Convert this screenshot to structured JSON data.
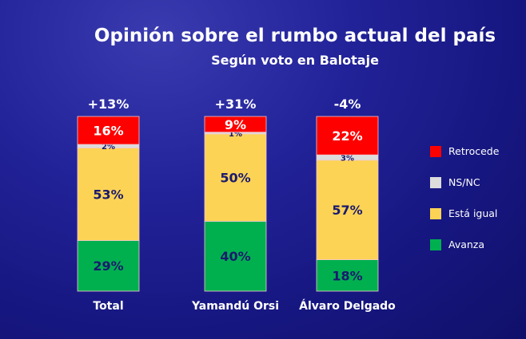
{
  "chart_data": {
    "type": "bar",
    "stacked": true,
    "title": "Opinión sobre el rumbo actual del país",
    "subtitle": "Según voto en Balotaje",
    "categories": [
      "Total",
      "Yamandú Orsi",
      "Álvaro Delgado"
    ],
    "net_labels": [
      "+13%",
      "+31%",
      "-4%"
    ],
    "series": [
      {
        "name": "Avanza",
        "color": "#00b04f",
        "values": [
          29,
          40,
          18
        ]
      },
      {
        "name": "Está igual",
        "color": "#fdd355",
        "values": [
          53,
          50,
          57
        ]
      },
      {
        "name": "NS/NC",
        "color": "#dcdcdc",
        "values": [
          2,
          1,
          3
        ]
      },
      {
        "name": "Retrocede",
        "color": "#ff0000",
        "values": [
          16,
          9,
          22
        ]
      }
    ],
    "legend_order": [
      "Retrocede",
      "NS/NC",
      "Está igual",
      "Avanza"
    ],
    "legend_position": "right",
    "ylim": [
      0,
      100
    ],
    "grid": false
  }
}
